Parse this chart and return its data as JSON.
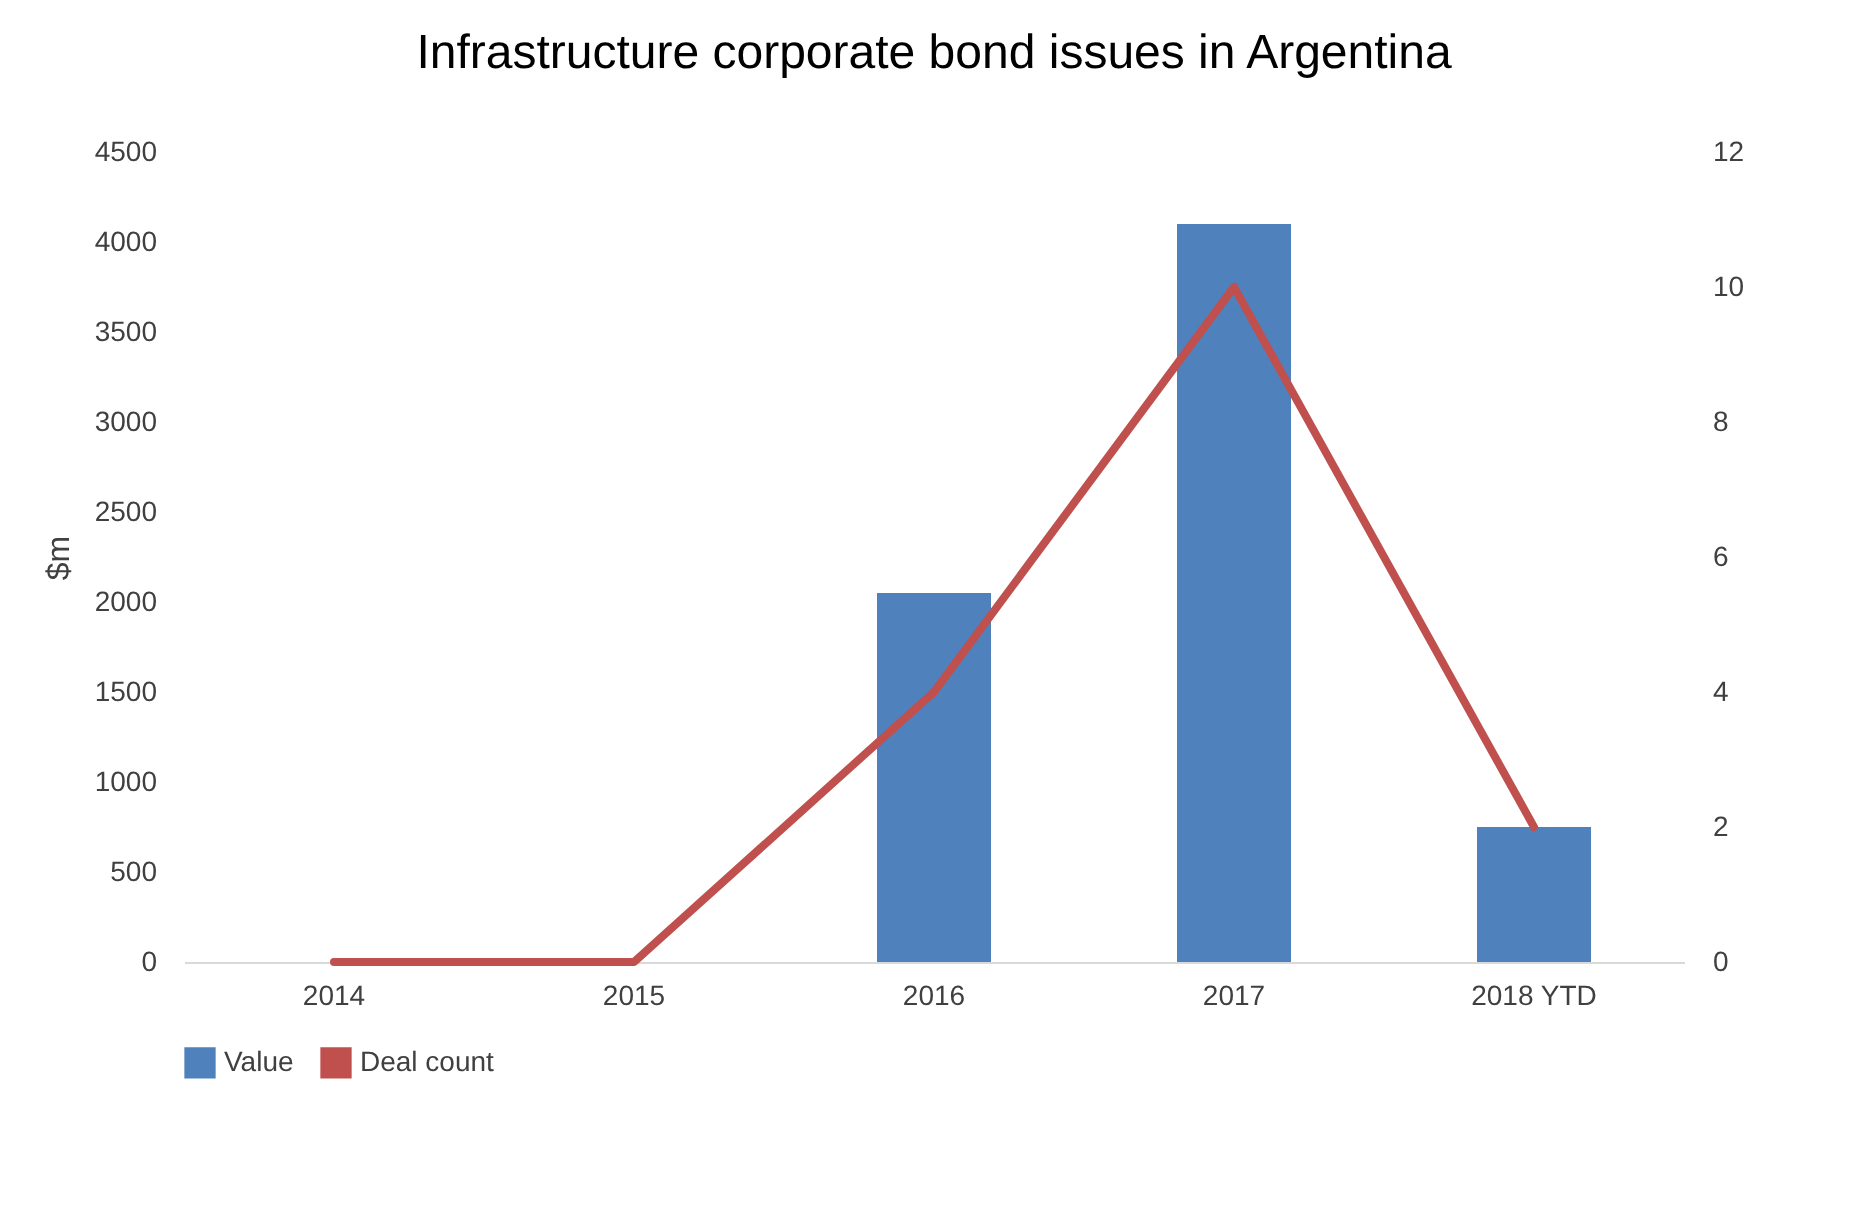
{
  "chart_data": {
    "type": "bar",
    "title": "Infrastructure corporate bond issues in Argentina",
    "ylabel": "$m",
    "categories": [
      "2014",
      "2015",
      "2016",
      "2017",
      "2018 YTD"
    ],
    "series": [
      {
        "name": "Value",
        "color": "#4f81bd",
        "values": [
          0,
          0,
          2050,
          4100,
          750
        ]
      },
      {
        "name": "Deal count",
        "type": "line",
        "axis": "y2",
        "color": "#c0504d",
        "values": [
          0,
          0,
          4,
          10,
          2
        ]
      }
    ],
    "ylim": [
      0,
      4500
    ],
    "yticks": [
      0,
      500,
      1000,
      1500,
      2000,
      2500,
      3000,
      3500,
      4000,
      4500
    ],
    "y2lim": [
      0,
      12
    ],
    "y2ticks": [
      0,
      2,
      4,
      6,
      8,
      10,
      12
    ],
    "legend": "bottom",
    "grid": false
  }
}
